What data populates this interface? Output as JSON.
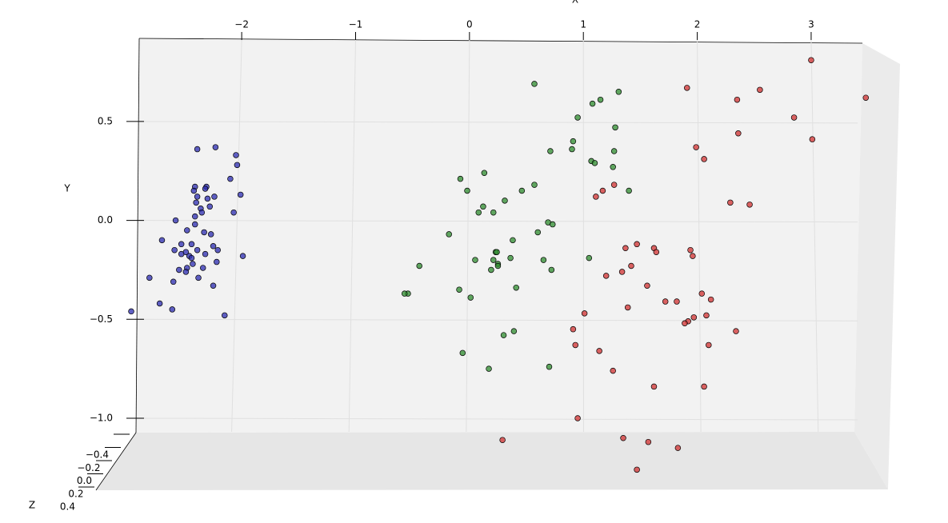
{
  "chart_data": {
    "type": "scatter3d",
    "xlabel": "X",
    "ylabel": "Y",
    "zlabel": "Z",
    "xlim": [
      -2.9,
      3.45
    ],
    "ylim": [
      -1.0,
      0.92
    ],
    "zlim": [
      -0.4,
      0.4
    ],
    "xticks": [
      {
        "value": -2,
        "label": "−2"
      },
      {
        "value": -1,
        "label": "−1"
      },
      0,
      1,
      2,
      3
    ],
    "yticks": [
      {
        "value": -1.0,
        "label": "−1.0"
      },
      {
        "value": -0.5,
        "label": "−0.5"
      },
      {
        "value": 0,
        "label": "0.0"
      },
      0.5
    ],
    "zticks": [
      {
        "value": -0.4,
        "label": "−0.4"
      },
      {
        "value": -0.2,
        "label": "−0.2"
      },
      {
        "value": 0,
        "label": "0.0"
      },
      0.2,
      0.4
    ],
    "grid": true,
    "series": [
      {
        "color": "#2b2bb0",
        "x": [
          -2.39,
          -2.23,
          -2.05,
          -2.04,
          -2.1,
          -2.31,
          -2.32,
          -2.39,
          -2.3,
          -2.24,
          -2.4,
          -2.36,
          -2.28,
          -2.01,
          -2.07,
          -2.41,
          -2.35,
          -2.58,
          -2.41,
          -2.48,
          -2.33,
          -2.7,
          -2.53,
          -2.44,
          -2.27,
          -2.25,
          -2.59,
          -2.53,
          -2.49,
          -2.46,
          -2.39,
          -2.44,
          -2.32,
          -2.21,
          -1.99,
          -2.43,
          -2.55,
          -2.48,
          -2.34,
          -2.22,
          -2.49,
          -2.6,
          -2.38,
          -2.81,
          -2.25,
          -2.72,
          -2.61,
          -2.97,
          -2.15,
          -2.41,
          -2.42
        ],
        "y": [
          0.36,
          0.37,
          0.33,
          0.28,
          0.21,
          0.17,
          0.16,
          0.12,
          0.11,
          0.12,
          0.09,
          0.06,
          0.07,
          0.13,
          0.04,
          0.02,
          0.04,
          0.0,
          -0.02,
          -0.05,
          -0.06,
          -0.1,
          -0.12,
          -0.12,
          -0.07,
          -0.13,
          -0.15,
          -0.17,
          -0.16,
          -0.18,
          -0.15,
          -0.19,
          -0.17,
          -0.15,
          -0.18,
          -0.22,
          -0.25,
          -0.24,
          -0.24,
          -0.21,
          -0.26,
          -0.31,
          -0.29,
          -0.29,
          -0.33,
          -0.42,
          -0.45,
          -0.46,
          -0.48,
          0.17,
          0.15
        ]
      },
      {
        "color": "#2e8b2e",
        "x": [
          0.57,
          1.31,
          1.15,
          1.08,
          0.95,
          1.28,
          0.91,
          0.9,
          1.27,
          0.71,
          1.07,
          1.1,
          1.26,
          0.13,
          -0.08,
          0.57,
          1.4,
          -0.02,
          0.46,
          0.31,
          0.12,
          0.08,
          0.21,
          0.69,
          0.73,
          -0.18,
          0.6,
          0.38,
          0.23,
          -0.44,
          0.05,
          0.21,
          0.25,
          0.36,
          0.65,
          1.05,
          0.19,
          0.25,
          0.72,
          0.41,
          -0.09,
          -0.54,
          -0.57,
          0.01,
          0.39,
          0.3,
          -0.06,
          0.17,
          0.7,
          0.24
        ],
        "y": [
          0.69,
          0.65,
          0.61,
          0.59,
          0.52,
          0.47,
          0.4,
          0.36,
          0.35,
          0.35,
          0.3,
          0.29,
          0.27,
          0.24,
          0.21,
          0.18,
          0.15,
          0.15,
          0.15,
          0.1,
          0.07,
          0.04,
          0.04,
          -0.01,
          -0.02,
          -0.07,
          -0.06,
          -0.1,
          -0.16,
          -0.23,
          -0.2,
          -0.2,
          -0.22,
          -0.19,
          -0.2,
          -0.19,
          -0.25,
          -0.23,
          -0.25,
          -0.34,
          -0.35,
          -0.37,
          -0.37,
          -0.39,
          -0.56,
          -0.58,
          -0.67,
          -0.75,
          -0.74,
          -0.16
        ]
      },
      {
        "color": "#d03030",
        "x": [
          3.0,
          1.91,
          2.55,
          2.35,
          3.48,
          2.85,
          2.36,
          1.99,
          2.06,
          1.27,
          1.17,
          1.11,
          3.01,
          2.29,
          2.46,
          1.47,
          1.37,
          1.62,
          1.64,
          1.94,
          1.96,
          1.2,
          1.42,
          1.34,
          1.56,
          2.04,
          1.72,
          1.82,
          2.12,
          1.39,
          1.97,
          2.08,
          1.01,
          1.92,
          1.89,
          2.34,
          0.91,
          0.93,
          1.14,
          2.1,
          1.26,
          1.62,
          2.06,
          0.95,
          0.29,
          1.35,
          1.57,
          1.83,
          1.47
        ],
        "y": [
          0.81,
          0.67,
          0.66,
          0.61,
          0.62,
          0.52,
          0.44,
          0.37,
          0.31,
          0.18,
          0.15,
          0.12,
          0.41,
          0.09,
          0.08,
          -0.12,
          -0.14,
          -0.14,
          -0.16,
          -0.15,
          -0.18,
          -0.28,
          -0.23,
          -0.26,
          -0.33,
          -0.37,
          -0.41,
          -0.41,
          -0.4,
          -0.44,
          -0.49,
          -0.48,
          -0.47,
          -0.51,
          -0.52,
          -0.56,
          -0.55,
          -0.63,
          -0.66,
          -0.63,
          -0.76,
          -0.84,
          -0.84,
          -1.0,
          -1.11,
          -1.1,
          -1.12,
          -1.15,
          -1.26
        ]
      }
    ]
  }
}
